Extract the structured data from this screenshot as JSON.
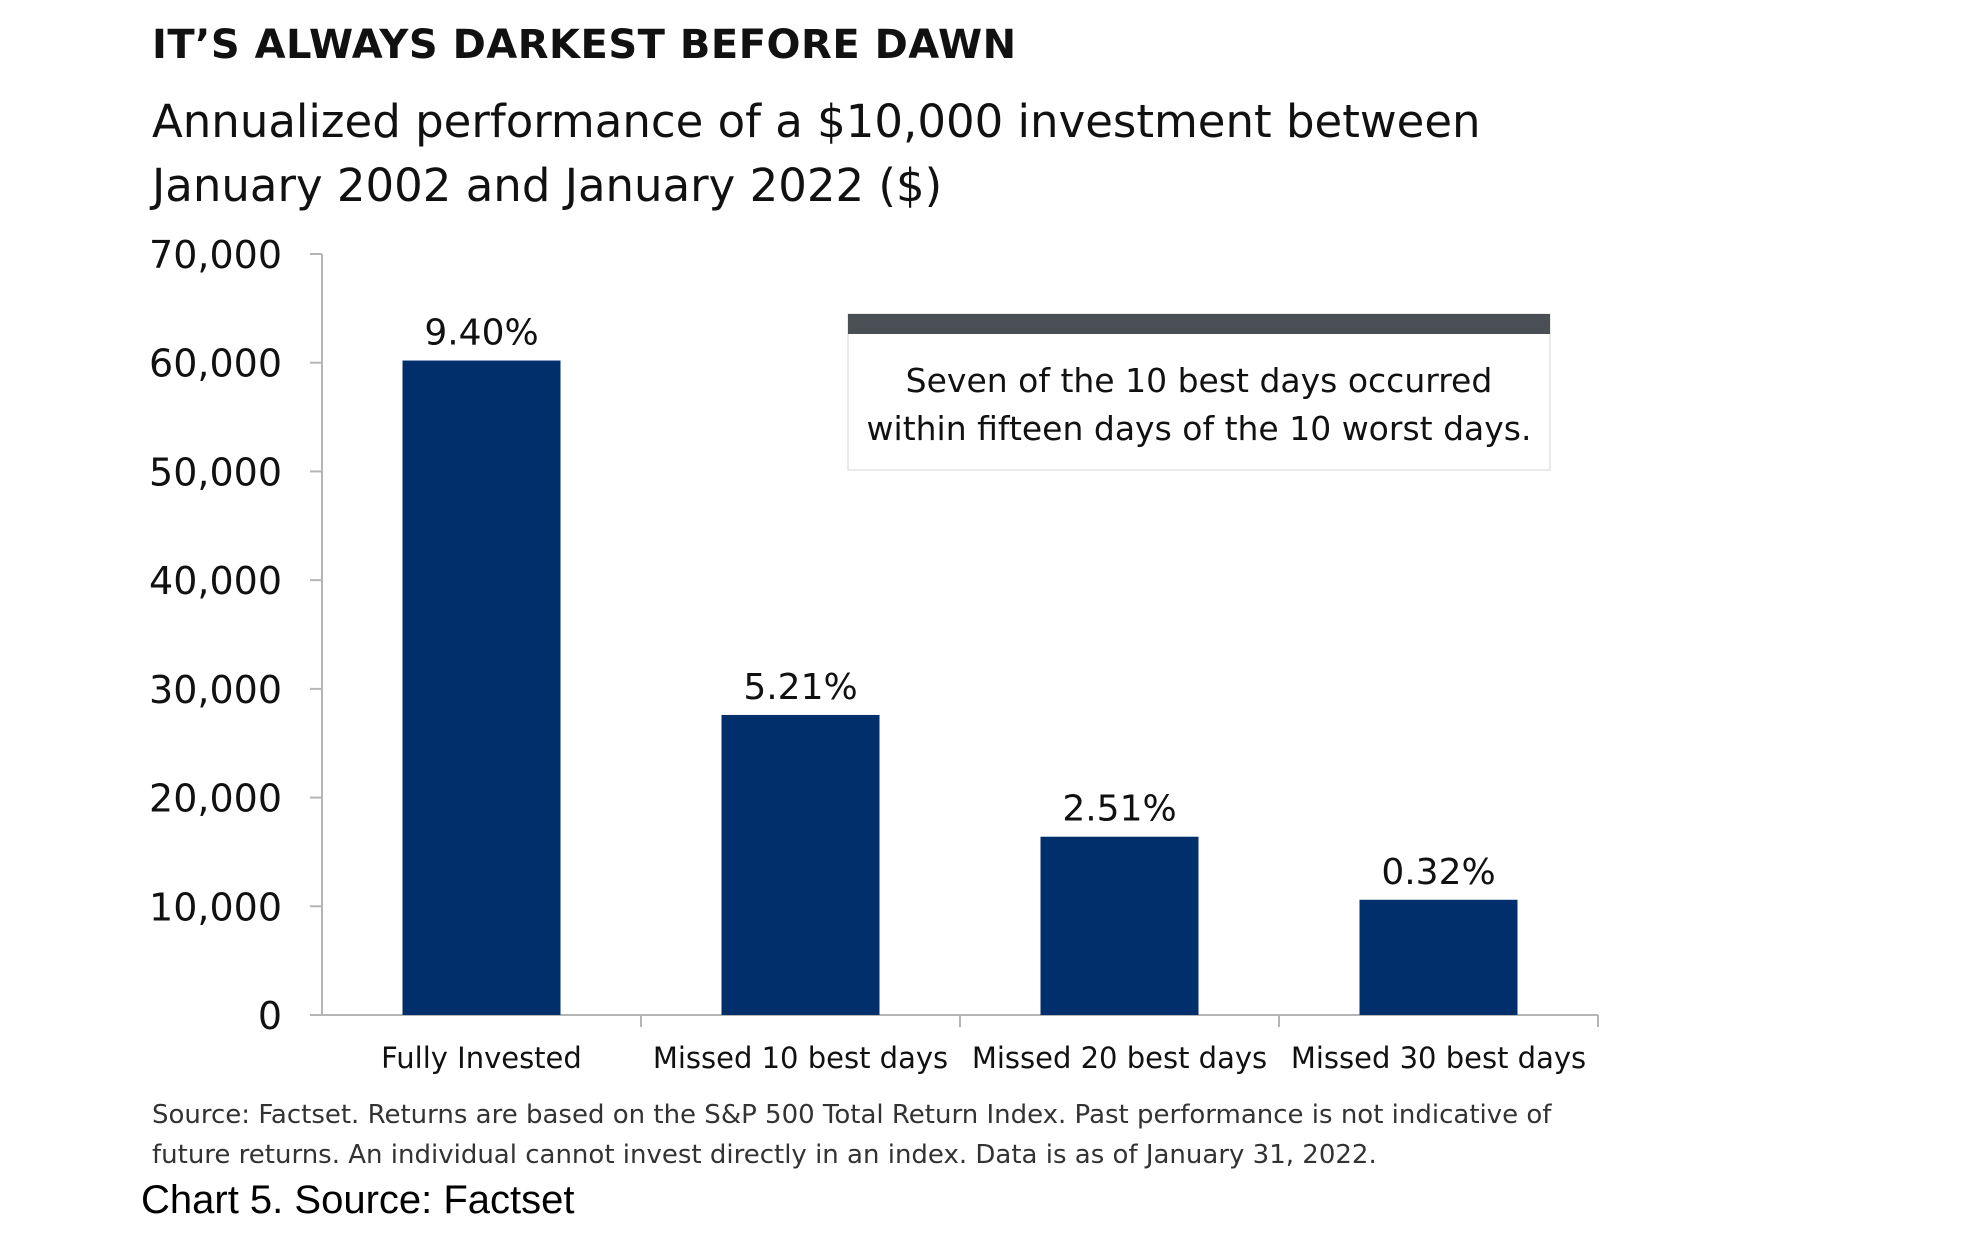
{
  "chart_data": {
    "type": "bar",
    "title": "IT’S ALWAYS DARKEST BEFORE DAWN",
    "subtitle": "Annualized performance of a $10,000 investment between January 2002 and January 2022 ($)",
    "categories": [
      "Fully Invested",
      "Missed 10 best days",
      "Missed 20 best days",
      "Missed 30 best days"
    ],
    "values": [
      60200,
      27600,
      16400,
      10600
    ],
    "data_labels": [
      "9.40%",
      "5.21%",
      "2.51%",
      "0.32%"
    ],
    "ylim": [
      0,
      70000
    ],
    "yticks": [
      0,
      10000,
      20000,
      30000,
      40000,
      50000,
      60000,
      70000
    ],
    "ytick_labels": [
      "0",
      "10,000",
      "20,000",
      "30,000",
      "40,000",
      "50,000",
      "60,000",
      "70,000"
    ],
    "xlabel": "",
    "ylabel": "",
    "grid": false,
    "bar_color": "#002f6c",
    "annotation": {
      "lines": [
        "Seven of the 10 best days occurred",
        "within fifteen days of the 10 worst days."
      ],
      "header_color": "#4a4f55"
    }
  },
  "footnote": "Source: Factset. Returns are based on the S&P 500 Total Return Index. Past performance is not indicative of future returns. An individual cannot invest directly in an index. Data is as of January 31, 2022.",
  "caption": "Chart 5. Source: Factset"
}
